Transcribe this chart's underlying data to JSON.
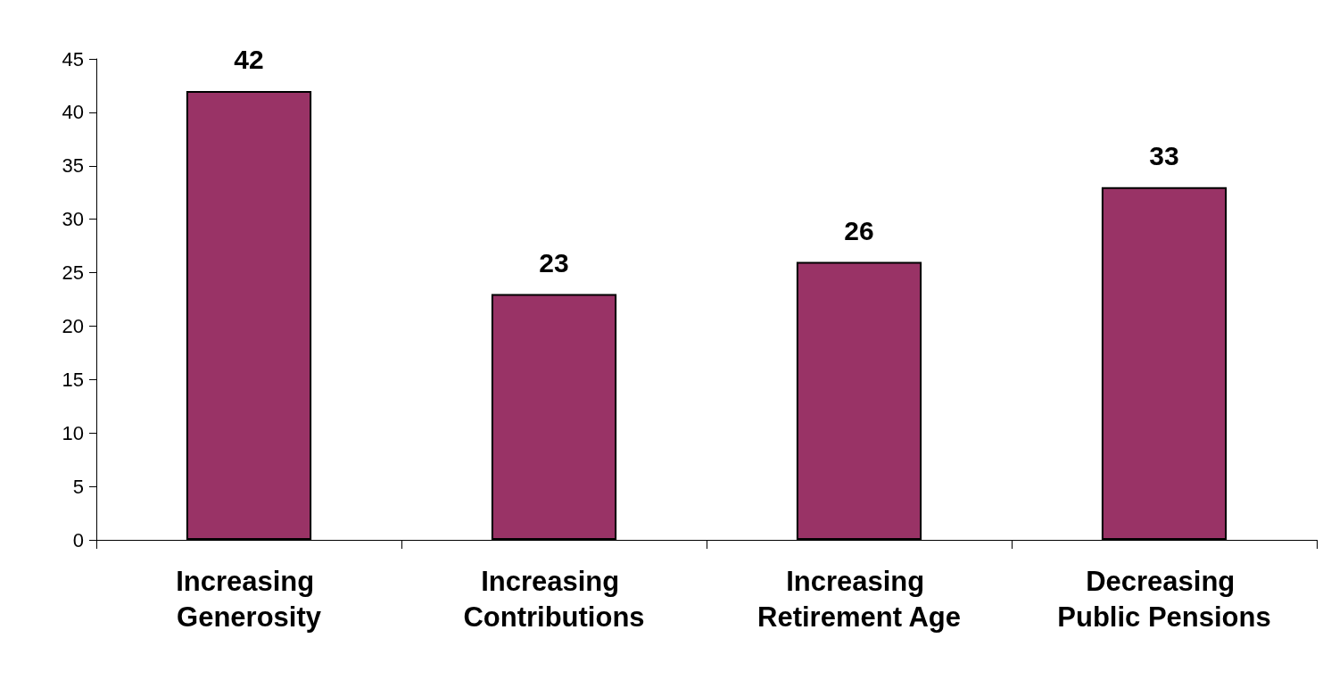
{
  "chart_data": {
    "type": "bar",
    "categories": [
      "Increasing Generosity",
      "Increasing Contributions",
      "Increasing Retirement Age",
      "Decreasing Public Pensions"
    ],
    "values": [
      42,
      23,
      26,
      33
    ],
    "color": "#993366",
    "ylim": [
      0,
      45
    ],
    "yticks": [
      0,
      5,
      10,
      15,
      20,
      25,
      30,
      35,
      40,
      45
    ],
    "grid": false,
    "data_labels": true
  }
}
